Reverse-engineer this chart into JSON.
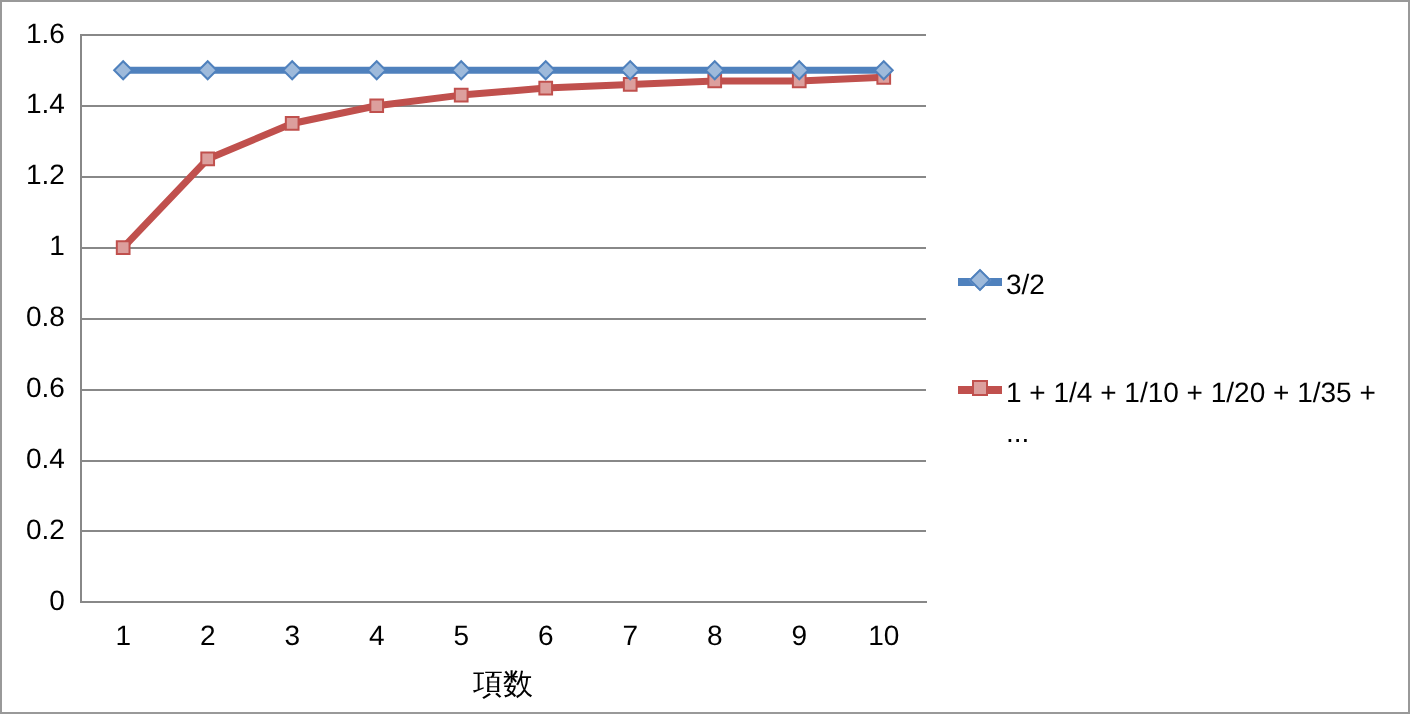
{
  "chart_data": {
    "type": "line",
    "xlabel": "項数",
    "categories": [
      "1",
      "2",
      "3",
      "4",
      "5",
      "6",
      "7",
      "8",
      "9",
      "10"
    ],
    "series": [
      {
        "name": "3/2",
        "color": "#4f81bd",
        "marker": "diamond",
        "values": [
          1.5,
          1.5,
          1.5,
          1.5,
          1.5,
          1.5,
          1.5,
          1.5,
          1.5,
          1.5
        ]
      },
      {
        "name": "1 + 1/4 + 1/10 + 1/20 + 1/35 + ...",
        "color": "#c0504d",
        "marker": "square",
        "values": [
          1,
          1.25,
          1.35,
          1.4,
          1.43,
          1.45,
          1.46,
          1.47,
          1.47,
          1.48
        ]
      }
    ],
    "ylim": [
      0,
      1.6
    ],
    "yticks": [
      0,
      0.2,
      0.4,
      0.6,
      0.8,
      1,
      1.2,
      1.4,
      1.6
    ],
    "grid": "y",
    "legend": "right"
  }
}
